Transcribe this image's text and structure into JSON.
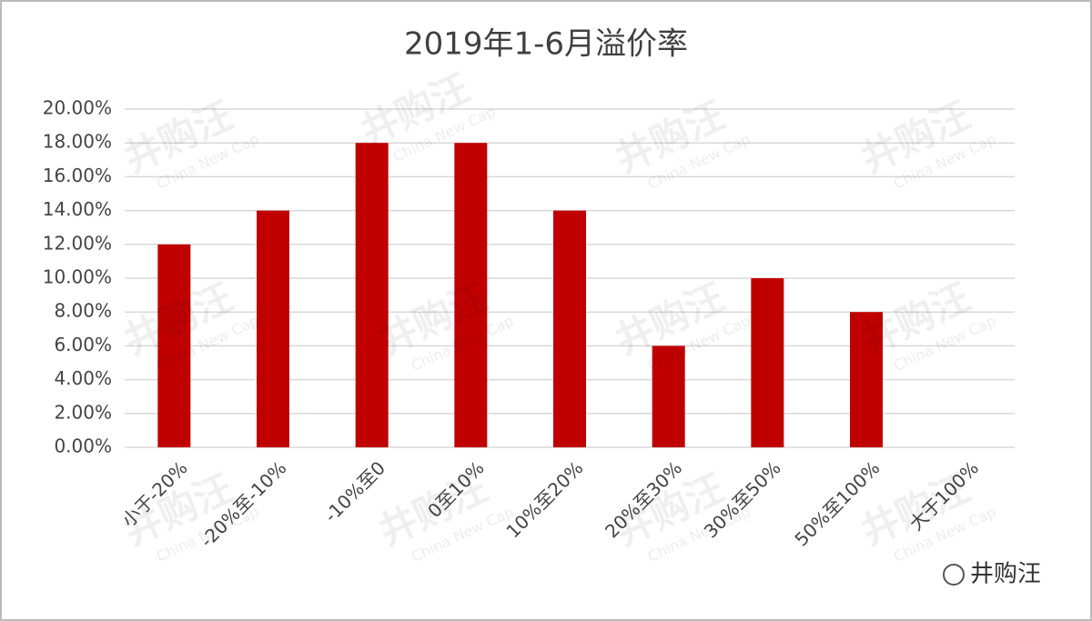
{
  "chart_data": {
    "type": "bar",
    "title": "2019年1-6月溢价率",
    "categories": [
      "小于-20%",
      "-20%至-10%",
      "-10%至0",
      "0至10%",
      "10%至20%",
      "20%至30%",
      "30%至50%",
      "50%至100%",
      "大于100%"
    ],
    "values": [
      12,
      14,
      18,
      18,
      14,
      6,
      10,
      8,
      0
    ],
    "color": "#c00000",
    "ylim": [
      0,
      20
    ],
    "yticks": [
      {
        "value": 0,
        "label": "0.00%"
      },
      {
        "value": 2,
        "label": "2.00%"
      },
      {
        "value": 4,
        "label": "4.00%"
      },
      {
        "value": 6,
        "label": "6.00%"
      },
      {
        "value": 8,
        "label": "8.00%"
      },
      {
        "value": 10,
        "label": "10.00%"
      },
      {
        "value": 12,
        "label": "12.00%"
      },
      {
        "value": 14,
        "label": "14.00%"
      },
      {
        "value": 16,
        "label": "16.00%"
      },
      {
        "value": 18,
        "label": "18.00%"
      },
      {
        "value": 20,
        "label": "20.00%"
      }
    ],
    "grid": true,
    "watermark": {
      "text": "井购汪",
      "subtext": "China New Cap"
    },
    "logo": "井购汪"
  }
}
